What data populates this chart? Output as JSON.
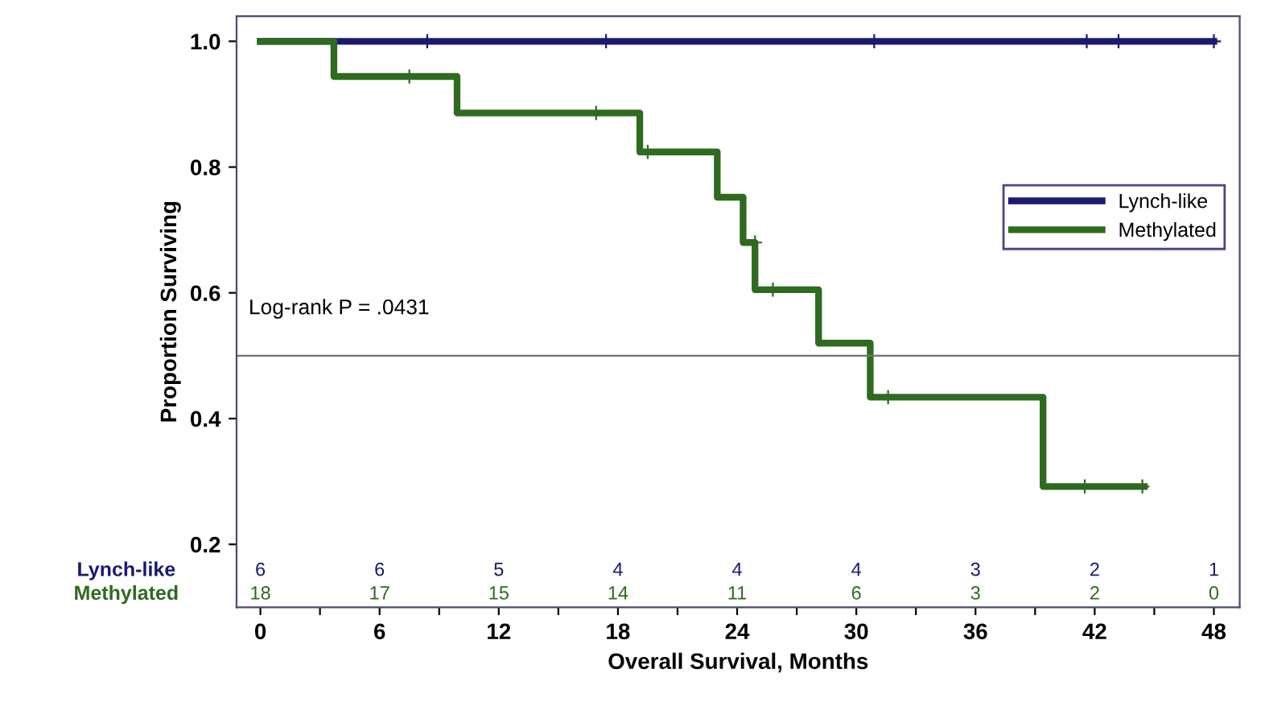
{
  "chart_data": {
    "type": "step",
    "xlabel": "Overall Survival, Months",
    "ylabel": "Proportion Surviving",
    "xlim": [
      -1.2,
      49.3
    ],
    "ylim": [
      0.1,
      1.04
    ],
    "xticks": [
      0,
      {
        "value": 3,
        "label": null
      },
      6,
      {
        "value": 9,
        "label": null
      },
      12,
      {
        "value": 15,
        "label": null
      },
      18,
      {
        "value": 21,
        "label": null
      },
      24,
      {
        "value": 27,
        "label": null
      },
      30,
      {
        "value": 33,
        "label": null
      },
      36,
      {
        "value": 39,
        "label": null
      },
      42,
      {
        "value": 45,
        "label": null
      },
      48
    ],
    "yticks": [
      0.2,
      0.4,
      0.6,
      0.8,
      {
        "value": 1,
        "label": "1.0"
      }
    ],
    "series": [
      {
        "name": "Lynch-like",
        "color": "#1a1a6e",
        "x": [
          0,
          48
        ],
        "values": [
          1.0,
          1.0
        ]
      },
      {
        "name": "Methylated",
        "color": "#2e6b1f",
        "x": [
          0,
          3.7,
          9.9,
          19.1,
          23.0,
          24.3,
          24.9,
          28.1,
          30.7,
          39.4,
          44.5
        ],
        "values": [
          1.0,
          0.944,
          0.886,
          0.824,
          0.752,
          0.68,
          0.605,
          0.52,
          0.434,
          0.292,
          0.292
        ]
      },
      {
        "type": "scatter",
        "color": "#1a1a6e",
        "marker": "cross",
        "x": [
          8.4,
          17.4,
          30.9,
          41.6,
          43.2,
          48
        ],
        "values": [
          1.0,
          1.0,
          1.0,
          1.0,
          1.0,
          1.0
        ]
      },
      {
        "type": "scatter",
        "color": "#2e6b1f",
        "marker": "cross",
        "x": [
          7.5,
          16.9,
          19.5,
          24.9,
          25.8,
          31.6,
          41.5,
          44.4
        ],
        "values": [
          0.944,
          0.886,
          0.824,
          0.68,
          0.605,
          0.434,
          0.292,
          0.292
        ]
      }
    ],
    "ref_lines": [
      {
        "axis": "y",
        "value": 0.5,
        "color": "#707070"
      }
    ],
    "legend": "right",
    "grid": false,
    "annotations": [
      "Log-rank P = .0431",
      "Lynch-like",
      "6",
      "6",
      "5",
      "4",
      "4",
      "4",
      "3",
      "2",
      "1",
      "Methylated",
      "18",
      "17",
      "15",
      "14",
      "11",
      "6",
      "3",
      "2",
      "0"
    ]
  }
}
